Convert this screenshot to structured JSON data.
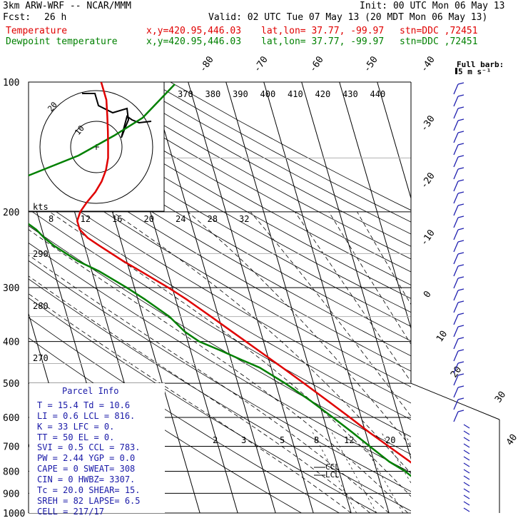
{
  "header": {
    "model": "3km ARW-WRF -- NCAR/MMM",
    "init": "Init: 00 UTC Mon 06 May 13",
    "fcst_label": "Fcst:",
    "fcst_value": "26 h",
    "valid": "Valid: 02 UTC Tue 07 May 13 (20 MDT Mon 06 May 13)"
  },
  "legend": [
    {
      "name": "Temperature",
      "xy": "x,y=420.95,446.03",
      "latlon": "lat,lon= 37.77, -99.97",
      "stn": "stn=DDC ,72451",
      "color": "#e00000"
    },
    {
      "name": "Dewpoint temperature",
      "xy": "x,y=420.95,446.03",
      "latlon": "lat,lon= 37.77, -99.97",
      "stn": "stn=DDC ,72451",
      "color": "#008000"
    }
  ],
  "wind_key": {
    "line1": "Full barb:",
    "line2": "5 m s⁻¹"
  },
  "chart_data": {
    "type": "skew-T log-p sounding",
    "pressure_axis": {
      "min": 100,
      "max": 1000,
      "ticks": [
        100,
        200,
        300,
        400,
        500,
        600,
        700,
        800,
        900,
        1000
      ]
    },
    "isotherm_labels": [
      "-80",
      "-70",
      "-60",
      "-50",
      "-40",
      "-30",
      "-20",
      "-10",
      "0",
      "10",
      "20",
      "30",
      "40"
    ],
    "theta_e_labels": [
      "370",
      "380",
      "390",
      "400",
      "410",
      "420",
      "430",
      "440"
    ],
    "mixing_ratio_labels": [
      "2",
      "3",
      "5",
      "8",
      "12",
      "20"
    ],
    "hodograph": {
      "speed_ring_labels": [
        "8",
        "12",
        "16",
        "20",
        "24",
        "28",
        "32"
      ],
      "unit": "kts",
      "direction_labels": [
        "290",
        "280",
        "270"
      ],
      "ring_labels": [
        "20",
        "10"
      ],
      "hodo_ring_labels": [
        "40",
        "30"
      ]
    },
    "temperature": {
      "color": "#e00000",
      "pressure": [
        880,
        855,
        840,
        800,
        760,
        700,
        650,
        600,
        550,
        500,
        460,
        420,
        380,
        350,
        320,
        300,
        275,
        260,
        240,
        230,
        220,
        210,
        200,
        190,
        180,
        170,
        160,
        150,
        140,
        130,
        120,
        110,
        100
      ],
      "temp_c": [
        13.5,
        15.4,
        15.0,
        12.0,
        9.5,
        5.0,
        1.0,
        -3.0,
        -7.5,
        -12.5,
        -17.0,
        -22.0,
        -27.5,
        -32.0,
        -37.0,
        -41.0,
        -47.0,
        -51.0,
        -56.0,
        -58.5,
        -60.0,
        -60.0,
        -58.5,
        -56.0,
        -53.0,
        -50.5,
        -48.5,
        -47.0,
        -46.0,
        -45.0,
        -44.0,
        -43.0,
        -43.0
      ]
    },
    "dewpoint": {
      "color": "#008000",
      "pressure": [
        880,
        855,
        800,
        760,
        700,
        650,
        600,
        550,
        500,
        460,
        440,
        420,
        400,
        380,
        350,
        320,
        300,
        275,
        260,
        240,
        230,
        220,
        210,
        200,
        190,
        180,
        170,
        160,
        150,
        140,
        130,
        120,
        110,
        100
      ],
      "dewpoint_c": [
        10.0,
        10.6,
        7.5,
        4.0,
        0.0,
        -3.5,
        -7.5,
        -12.0,
        -17.5,
        -23.0,
        -27.5,
        -32.0,
        -37.0,
        -40.0,
        -43.0,
        -48.0,
        -52.0,
        -58.0,
        -63.0,
        -68.0,
        -70.0,
        -71.5,
        -74.0,
        -78.0,
        -82.0,
        -86.0,
        -90.0,
        -92.0,
        -93.0,
        -93.0,
        -92.0,
        -91.0,
        -90.0,
        -88.0
      ]
    },
    "lcl_labels": [
      "CCL",
      "LCL"
    ]
  },
  "parcel_info": {
    "title": "Parcel Info",
    "rows": [
      "T  =   15.4  Td =  10.6",
      "LI =    0.6  LCL =  816.",
      "K  =     33  LFC =    0.",
      "TT =     50  EL  =    0.",
      "SVI =   0.5  CCL =  783.",
      "PW =   2.44  YGP =   0.0",
      "CAPE =    0  SWEAT=  308",
      "CIN =     0  HWBZ= 3307.",
      "Tc =   20.0  SHEAR=  15.",
      "SREH =   82  LAPSE=  6.5",
      "CELL = 217/17"
    ]
  }
}
